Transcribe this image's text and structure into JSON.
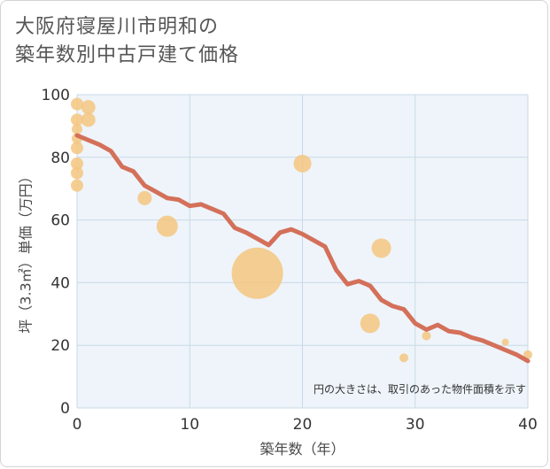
{
  "chart_data": {
    "type": "scatter+line",
    "title_lines": [
      "大阪府寝屋川市明和の",
      "築年数別中古戸建て価格"
    ],
    "xlabel": "築年数（年）",
    "ylabel": "坪（3.3㎡）単価（万円）",
    "xlim": [
      0,
      40
    ],
    "ylim": [
      0,
      100
    ],
    "x_ticks": [
      0,
      10,
      20,
      30,
      40
    ],
    "y_ticks": [
      0,
      20,
      40,
      60,
      80,
      100
    ],
    "note": "円の大きさは、取引のあった物件面積を示す",
    "colors": {
      "line": "#d4705a",
      "bubble": "#f5c57f",
      "grid": "#c9d9e6",
      "plot_bg": "#eef4fa"
    },
    "line_series": {
      "x": [
        0,
        1,
        2,
        3,
        4,
        5,
        6,
        7,
        8,
        9,
        10,
        11,
        12,
        13,
        14,
        15,
        16,
        17,
        18,
        19,
        20,
        21,
        22,
        23,
        24,
        25,
        26,
        27,
        28,
        29,
        30,
        31,
        32,
        33,
        34,
        35,
        36,
        37,
        38,
        39,
        40
      ],
      "y": [
        87,
        85.5,
        84,
        82,
        77,
        75.5,
        71,
        69,
        67,
        66.5,
        64.5,
        65,
        63.5,
        62,
        57.5,
        56,
        54,
        52,
        56,
        57,
        55.5,
        53.5,
        51.5,
        44,
        39.5,
        40.5,
        39,
        34.5,
        32.5,
        31.5,
        27,
        25,
        26.5,
        24.5,
        24,
        22.5,
        21.5,
        20,
        18.5,
        17,
        15
      ]
    },
    "bubbles": [
      {
        "x": 0,
        "y": 97,
        "size": 7
      },
      {
        "x": 0,
        "y": 92,
        "size": 7
      },
      {
        "x": 0,
        "y": 89,
        "size": 6
      },
      {
        "x": 0,
        "y": 86,
        "size": 6
      },
      {
        "x": 0,
        "y": 83,
        "size": 7
      },
      {
        "x": 0,
        "y": 78,
        "size": 7
      },
      {
        "x": 0,
        "y": 75,
        "size": 7
      },
      {
        "x": 0,
        "y": 71,
        "size": 7
      },
      {
        "x": 1,
        "y": 96,
        "size": 8
      },
      {
        "x": 1,
        "y": 92,
        "size": 8
      },
      {
        "x": 6,
        "y": 67,
        "size": 8
      },
      {
        "x": 8,
        "y": 58,
        "size": 12
      },
      {
        "x": 16,
        "y": 43,
        "size": 29
      },
      {
        "x": 20,
        "y": 78,
        "size": 10
      },
      {
        "x": 26,
        "y": 27,
        "size": 11
      },
      {
        "x": 27,
        "y": 51,
        "size": 11
      },
      {
        "x": 29,
        "y": 16,
        "size": 5
      },
      {
        "x": 31,
        "y": 23,
        "size": 5
      },
      {
        "x": 38,
        "y": 21,
        "size": 4
      },
      {
        "x": 40,
        "y": 17,
        "size": 5
      }
    ]
  }
}
